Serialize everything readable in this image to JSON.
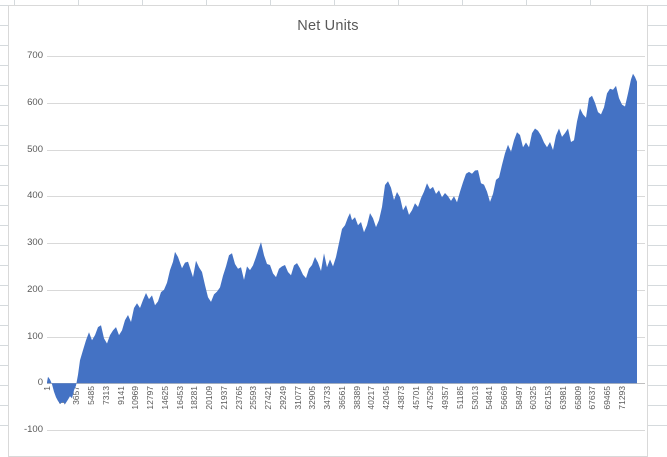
{
  "chart": {
    "title": "Net Units",
    "colors": {
      "area_fill": "#4472C4",
      "gridline": "#d9d9d9",
      "zero_axis_line": "#bfbfbf",
      "axis_text": "#595959",
      "title_text": "#595959",
      "chart_border": "#d9d9d9",
      "sheet_gridline": "#d5dadd",
      "background": "#ffffff"
    },
    "y_axis": {
      "ticks": [
        700,
        600,
        500,
        400,
        300,
        200,
        100,
        0,
        -100
      ],
      "min": -100,
      "max": 700,
      "step": 100
    },
    "x_axis": {
      "labels": [
        "1",
        "1829",
        "3657",
        "5485",
        "7313",
        "9141",
        "10969",
        "12797",
        "14625",
        "16453",
        "18281",
        "20109",
        "21937",
        "23765",
        "25593",
        "27421",
        "29249",
        "31077",
        "32905",
        "34733",
        "36561",
        "38389",
        "40217",
        "42045",
        "43873",
        "45701",
        "47529",
        "49357",
        "51185",
        "53013",
        "54841",
        "56669",
        "58497",
        "60325",
        "62153",
        "63981",
        "65809",
        "67637",
        "69465",
        "71293"
      ],
      "min": 1,
      "max": 73160
    }
  },
  "chart_data": {
    "type": "area",
    "title": "Net Units",
    "xlabel": "",
    "ylabel": "",
    "xlim": [
      1,
      73160
    ],
    "ylim": [
      -100,
      700
    ],
    "y_ticks": [
      700,
      600,
      500,
      400,
      300,
      200,
      100,
      0,
      -100
    ],
    "x_tick_labels": [
      "1",
      "1829",
      "3657",
      "5485",
      "7313",
      "9141",
      "10969",
      "12797",
      "14625",
      "16453",
      "18281",
      "20109",
      "21937",
      "23765",
      "25593",
      "27421",
      "29249",
      "31077",
      "32905",
      "34733",
      "36561",
      "38389",
      "40217",
      "42045",
      "43873",
      "45701",
      "47529",
      "49357",
      "51185",
      "53013",
      "54841",
      "56669",
      "58497",
      "60325",
      "62153",
      "63981",
      "65809",
      "67637",
      "69465",
      "71293"
    ],
    "grid": "horizontal",
    "legend": "none",
    "fill_color": "#4472C4",
    "series": [
      {
        "name": "Net Units",
        "points": [
          [
            1,
            2
          ],
          [
            124,
            14
          ],
          [
            372,
            8
          ],
          [
            620,
            -2
          ],
          [
            868,
            -18
          ],
          [
            1116,
            -30
          ],
          [
            1364,
            -38
          ],
          [
            1612,
            -44
          ],
          [
            1984,
            -40
          ],
          [
            2232,
            -45
          ],
          [
            2604,
            -35
          ],
          [
            2852,
            -28
          ],
          [
            3100,
            -32
          ],
          [
            3348,
            -15
          ],
          [
            3596,
            -5
          ],
          [
            3844,
            18
          ],
          [
            4092,
            49
          ],
          [
            4464,
            71
          ],
          [
            4836,
            92
          ],
          [
            5208,
            109
          ],
          [
            5580,
            92
          ],
          [
            5952,
            103
          ],
          [
            6324,
            120
          ],
          [
            6696,
            124
          ],
          [
            7068,
            96
          ],
          [
            7440,
            85
          ],
          [
            7812,
            103
          ],
          [
            8184,
            113
          ],
          [
            8556,
            120
          ],
          [
            8928,
            103
          ],
          [
            9300,
            113
          ],
          [
            9672,
            135
          ],
          [
            10044,
            146
          ],
          [
            10416,
            131
          ],
          [
            10788,
            161
          ],
          [
            11160,
            171
          ],
          [
            11532,
            161
          ],
          [
            11904,
            178
          ],
          [
            12276,
            193
          ],
          [
            12648,
            180
          ],
          [
            13020,
            188
          ],
          [
            13392,
            167
          ],
          [
            13764,
            175
          ],
          [
            14136,
            195
          ],
          [
            14508,
            200
          ],
          [
            14880,
            215
          ],
          [
            15252,
            242
          ],
          [
            15624,
            260
          ],
          [
            15872,
            281
          ],
          [
            16244,
            270
          ],
          [
            16740,
            246
          ],
          [
            17112,
            258
          ],
          [
            17484,
            260
          ],
          [
            17856,
            240
          ],
          [
            18104,
            227
          ],
          [
            18476,
            262
          ],
          [
            18848,
            248
          ],
          [
            19220,
            238
          ],
          [
            19592,
            210
          ],
          [
            19964,
            184
          ],
          [
            20336,
            174
          ],
          [
            20708,
            190
          ],
          [
            21080,
            196
          ],
          [
            21452,
            205
          ],
          [
            21824,
            230
          ],
          [
            22196,
            250
          ],
          [
            22568,
            274
          ],
          [
            22940,
            278
          ],
          [
            23312,
            255
          ],
          [
            23684,
            245
          ],
          [
            24056,
            248
          ],
          [
            24428,
            221
          ],
          [
            24800,
            250
          ],
          [
            25172,
            242
          ],
          [
            25544,
            252
          ],
          [
            25916,
            270
          ],
          [
            26288,
            290
          ],
          [
            26536,
            302
          ],
          [
            26908,
            274
          ],
          [
            27280,
            255
          ],
          [
            27652,
            253
          ],
          [
            28024,
            235
          ],
          [
            28396,
            227
          ],
          [
            28768,
            245
          ],
          [
            29140,
            250
          ],
          [
            29512,
            253
          ],
          [
            29884,
            238
          ],
          [
            30256,
            231
          ],
          [
            30628,
            252
          ],
          [
            31000,
            257
          ],
          [
            31372,
            246
          ],
          [
            31744,
            232
          ],
          [
            32116,
            225
          ],
          [
            32488,
            245
          ],
          [
            32860,
            253
          ],
          [
            33232,
            270
          ],
          [
            33604,
            258
          ],
          [
            33976,
            240
          ],
          [
            34348,
            278
          ],
          [
            34720,
            248
          ],
          [
            35092,
            265
          ],
          [
            35464,
            250
          ],
          [
            35836,
            270
          ],
          [
            36208,
            300
          ],
          [
            36580,
            330
          ],
          [
            36952,
            338
          ],
          [
            37324,
            355
          ],
          [
            37572,
            364
          ],
          [
            37820,
            349
          ],
          [
            38192,
            355
          ],
          [
            38564,
            338
          ],
          [
            38936,
            345
          ],
          [
            39308,
            323
          ],
          [
            39680,
            338
          ],
          [
            40052,
            364
          ],
          [
            40424,
            353
          ],
          [
            40796,
            334
          ],
          [
            41168,
            349
          ],
          [
            41540,
            377
          ],
          [
            41912,
            424
          ],
          [
            42284,
            432
          ],
          [
            42656,
            418
          ],
          [
            43028,
            392
          ],
          [
            43400,
            409
          ],
          [
            43772,
            398
          ],
          [
            44144,
            370
          ],
          [
            44516,
            381
          ],
          [
            44888,
            360
          ],
          [
            45260,
            370
          ],
          [
            45632,
            385
          ],
          [
            46004,
            377
          ],
          [
            46376,
            396
          ],
          [
            46748,
            410
          ],
          [
            47120,
            428
          ],
          [
            47492,
            415
          ],
          [
            47864,
            420
          ],
          [
            48236,
            405
          ],
          [
            48608,
            413
          ],
          [
            48980,
            398
          ],
          [
            49352,
            407
          ],
          [
            49724,
            400
          ],
          [
            50096,
            390
          ],
          [
            50468,
            400
          ],
          [
            50840,
            387
          ],
          [
            51212,
            410
          ],
          [
            51584,
            430
          ],
          [
            51956,
            448
          ],
          [
            52328,
            452
          ],
          [
            52700,
            448
          ],
          [
            53072,
            455
          ],
          [
            53444,
            456
          ],
          [
            53816,
            428
          ],
          [
            54188,
            425
          ],
          [
            54560,
            410
          ],
          [
            54932,
            388
          ],
          [
            55304,
            405
          ],
          [
            55676,
            435
          ],
          [
            56048,
            440
          ],
          [
            56420,
            467
          ],
          [
            56792,
            492
          ],
          [
            57164,
            510
          ],
          [
            57536,
            495
          ],
          [
            57908,
            520
          ],
          [
            58280,
            537
          ],
          [
            58652,
            531
          ],
          [
            59024,
            505
          ],
          [
            59396,
            515
          ],
          [
            59768,
            505
          ],
          [
            60140,
            535
          ],
          [
            60512,
            545
          ],
          [
            60884,
            540
          ],
          [
            61256,
            530
          ],
          [
            61628,
            515
          ],
          [
            62000,
            505
          ],
          [
            62372,
            516
          ],
          [
            62744,
            499
          ],
          [
            63116,
            530
          ],
          [
            63488,
            545
          ],
          [
            63860,
            527
          ],
          [
            64232,
            535
          ],
          [
            64604,
            545
          ],
          [
            64976,
            516
          ],
          [
            65348,
            520
          ],
          [
            65720,
            560
          ],
          [
            66092,
            588
          ],
          [
            66464,
            575
          ],
          [
            66836,
            568
          ],
          [
            67208,
            610
          ],
          [
            67580,
            615
          ],
          [
            67952,
            600
          ],
          [
            68324,
            580
          ],
          [
            68696,
            575
          ],
          [
            69068,
            590
          ],
          [
            69440,
            620
          ],
          [
            69812,
            630
          ],
          [
            70184,
            628
          ],
          [
            70556,
            636
          ],
          [
            70928,
            610
          ],
          [
            71300,
            596
          ],
          [
            71672,
            592
          ],
          [
            72044,
            620
          ],
          [
            72416,
            650
          ],
          [
            72664,
            662
          ],
          [
            72912,
            655
          ],
          [
            73160,
            645
          ]
        ]
      }
    ]
  }
}
